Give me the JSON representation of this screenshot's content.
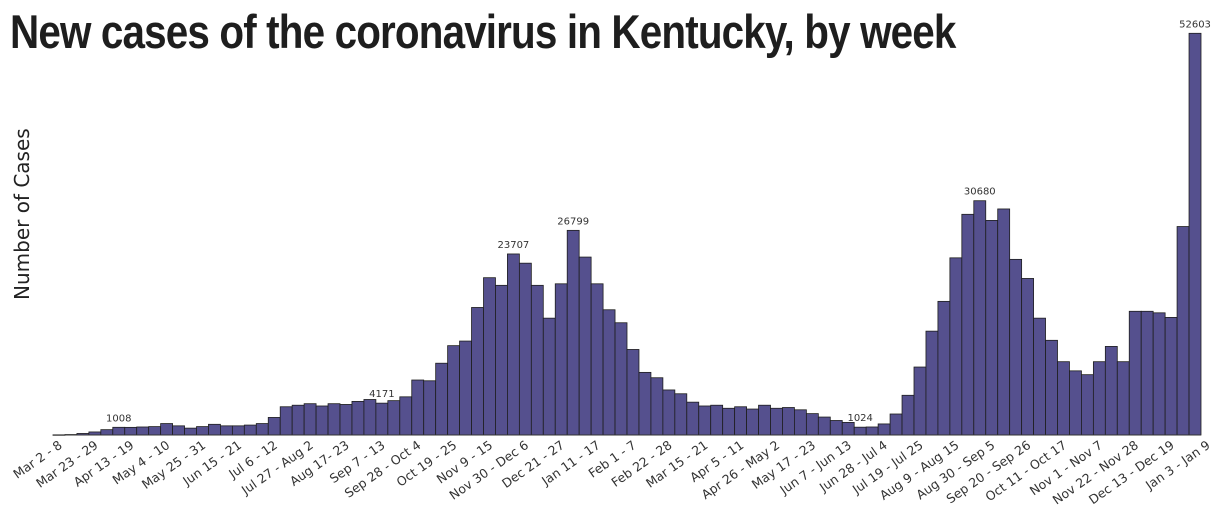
{
  "chart_data": {
    "type": "bar",
    "title": "New cases of the coronavirus in Kentucky, by week",
    "ylabel": "Number of Cases",
    "xlabel": "",
    "ylim": [
      0,
      55000
    ],
    "grid": false,
    "legend": "none",
    "bar_color": "#55508e",
    "values": [
      25,
      60,
      200,
      400,
      700,
      1008,
      1000,
      1050,
      1100,
      1500,
      1200,
      900,
      1100,
      1400,
      1200,
      1200,
      1300,
      1500,
      2300,
      3700,
      3900,
      4100,
      3800,
      4100,
      4000,
      4400,
      4650,
      4171,
      4500,
      5000,
      7200,
      7100,
      9400,
      11700,
      12300,
      16700,
      20600,
      19600,
      23707,
      22500,
      19600,
      15300,
      19800,
      26799,
      23300,
      19800,
      16400,
      14700,
      11200,
      8200,
      7500,
      5900,
      5400,
      4300,
      3800,
      3900,
      3500,
      3700,
      3400,
      3900,
      3500,
      3600,
      3300,
      2800,
      2350,
      1900,
      1650,
      1024,
      1050,
      1450,
      2750,
      5200,
      8900,
      13600,
      17500,
      23200,
      28900,
      30680,
      28100,
      29600,
      23000,
      20500,
      15300,
      12400,
      9600,
      8400,
      7900,
      9600,
      11600,
      9600,
      16200,
      16200,
      16000,
      15400,
      27300,
      52603
    ],
    "data_labels": [
      {
        "index": 5,
        "text": "1008"
      },
      {
        "index": 27,
        "text": "4171"
      },
      {
        "index": 38,
        "text": "23707"
      },
      {
        "index": 43,
        "text": "26799"
      },
      {
        "index": 67,
        "text": "1024"
      },
      {
        "index": 77,
        "text": "30680"
      },
      {
        "index": 95,
        "text": "52603"
      }
    ],
    "tick_labels": [
      {
        "index": 0,
        "text": "Mar 2 - 8"
      },
      {
        "index": 3,
        "text": "Mar 23 - 29"
      },
      {
        "index": 6,
        "text": "Apr 13 - 19"
      },
      {
        "index": 9,
        "text": "May 4 - 10"
      },
      {
        "index": 12,
        "text": "May 25 - 31"
      },
      {
        "index": 15,
        "text": "Jun 15 - 21"
      },
      {
        "index": 18,
        "text": "Jul 6 - 12"
      },
      {
        "index": 21,
        "text": "Jul 27 - Aug 2"
      },
      {
        "index": 24,
        "text": "Aug 17- 23"
      },
      {
        "index": 27,
        "text": "Sep 7 - 13"
      },
      {
        "index": 30,
        "text": "Sep 28 - Oct 4"
      },
      {
        "index": 33,
        "text": "Oct 19 - 25"
      },
      {
        "index": 36,
        "text": "Nov 9 - 15"
      },
      {
        "index": 39,
        "text": "Nov 30 - Dec 6"
      },
      {
        "index": 42,
        "text": "Dec 21 - 27"
      },
      {
        "index": 45,
        "text": "Jan 11 - 17"
      },
      {
        "index": 48,
        "text": "Feb 1 - 7"
      },
      {
        "index": 51,
        "text": "Feb 22 - 28"
      },
      {
        "index": 54,
        "text": "Mar 15 - 21"
      },
      {
        "index": 57,
        "text": "Apr 5 - 11"
      },
      {
        "index": 60,
        "text": "Apr 26 - May 2"
      },
      {
        "index": 63,
        "text": "May 17 - 23"
      },
      {
        "index": 66,
        "text": "Jun 7 - Jun 13"
      },
      {
        "index": 69,
        "text": "Jun 28 - Jul 4"
      },
      {
        "index": 72,
        "text": "Jul 19 - Jul 25"
      },
      {
        "index": 75,
        "text": "Aug 9 - Aug 15"
      },
      {
        "index": 78,
        "text": "Aug 30 - Sep 5"
      },
      {
        "index": 81,
        "text": "Sep 20 - Sep 26"
      },
      {
        "index": 84,
        "text": "Oct 11 - Oct 17"
      },
      {
        "index": 87,
        "text": "Nov 1 - Nov 7"
      },
      {
        "index": 90,
        "text": "Nov 22 - Nov 28"
      },
      {
        "index": 93,
        "text": "Dec 13 - Dec 19"
      },
      {
        "index": 96,
        "text": "Jan 3 - Jan 9"
      }
    ]
  }
}
